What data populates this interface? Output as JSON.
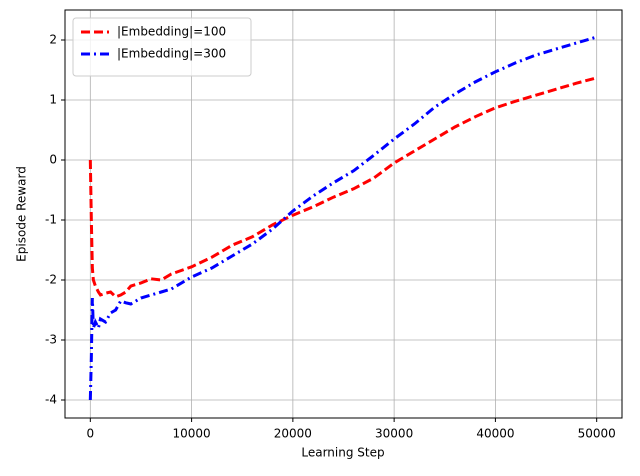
{
  "chart_data": {
    "type": "line",
    "x_label": "Learning Step",
    "y_label": "Episode Reward",
    "x": [
      0,
      100,
      200,
      300,
      500,
      800,
      1000,
      1500,
      2000,
      2500,
      3000,
      3500,
      4000,
      5000,
      6000,
      7000,
      8000,
      10000,
      12000,
      14000,
      16000,
      18000,
      20000,
      22000,
      24000,
      26000,
      28000,
      30000,
      32000,
      34000,
      36000,
      38000,
      40000,
      42000,
      44000,
      46000,
      48000,
      50000
    ],
    "series": [
      {
        "name": "|Embedding|=100",
        "color": "#ff0000",
        "linestyle": "dashed",
        "values": [
          0,
          -1,
          -1.8,
          -2.0,
          -2.1,
          -2.2,
          -2.25,
          -2.22,
          -2.2,
          -2.28,
          -2.25,
          -2.2,
          -2.1,
          -2.05,
          -1.98,
          -2.0,
          -1.9,
          -1.78,
          -1.62,
          -1.42,
          -1.28,
          -1.08,
          -0.92,
          -0.78,
          -0.62,
          -0.48,
          -0.3,
          -0.05,
          0.15,
          0.35,
          0.55,
          0.72,
          0.87,
          0.98,
          1.08,
          1.18,
          1.28,
          1.37
        ]
      },
      {
        "name": "|Embedding|=300",
        "color": "#0000ff",
        "linestyle": "dashdot",
        "values": [
          -4,
          -3.3,
          -2.3,
          -2.8,
          -2.7,
          -2.8,
          -2.65,
          -2.7,
          -2.55,
          -2.5,
          -2.35,
          -2.38,
          -2.4,
          -2.3,
          -2.25,
          -2.2,
          -2.15,
          -1.95,
          -1.8,
          -1.6,
          -1.4,
          -1.15,
          -0.85,
          -0.6,
          -0.38,
          -0.18,
          0.08,
          0.35,
          0.6,
          0.88,
          1.1,
          1.3,
          1.47,
          1.62,
          1.75,
          1.85,
          1.95,
          2.05
        ]
      }
    ],
    "xlim": [
      -2500,
      52500
    ],
    "ylim": [
      -4.3,
      2.5
    ],
    "xticks": [
      0,
      10000,
      20000,
      30000,
      40000,
      50000
    ],
    "yticks": [
      -4,
      -3,
      -2,
      -1,
      0,
      1,
      2
    ],
    "grid": true,
    "legend": "upper-left"
  }
}
